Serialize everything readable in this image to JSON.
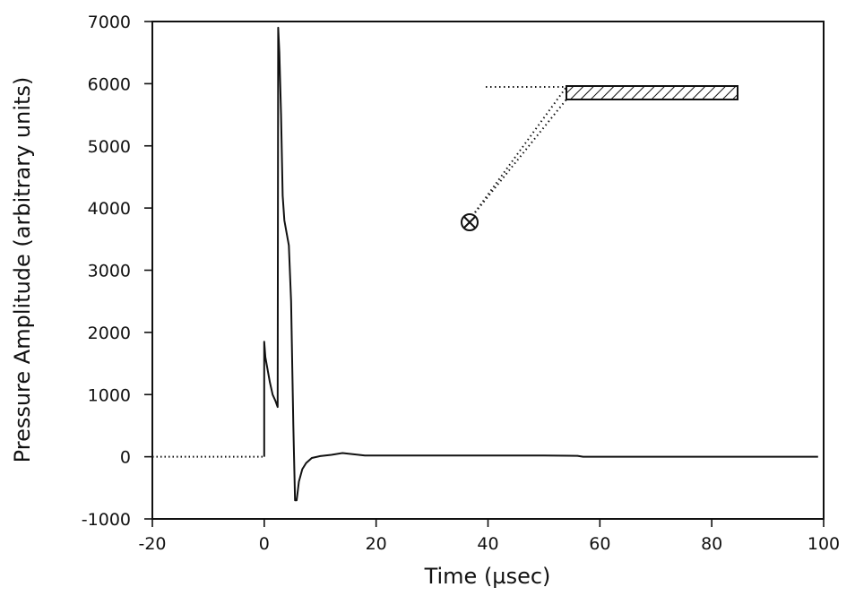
{
  "chart_data": {
    "type": "line",
    "title": "",
    "xlabel": "Time (µsec)",
    "ylabel": "Pressure Amplitude (arbitrary units)",
    "xlim": [
      -20,
      100
    ],
    "ylim": [
      -1000,
      7000
    ],
    "xticks": [
      -20,
      0,
      20,
      40,
      60,
      80,
      100
    ],
    "yticks": [
      -1000,
      0,
      1000,
      2000,
      3000,
      4000,
      5000,
      6000,
      7000
    ],
    "xtick_labels": [
      "-20",
      "0",
      "20",
      "40",
      "60",
      "80",
      "100"
    ],
    "ytick_labels": [
      "-1000",
      "0",
      "1000",
      "2000",
      "3000",
      "4000",
      "5000",
      "6000",
      "7000"
    ],
    "grid": false,
    "legend": "none",
    "series": [
      {
        "style": "dotted",
        "x": [
          -20,
          0
        ],
        "y": [
          0,
          0
        ]
      },
      {
        "style": "solid",
        "x": [
          0,
          0,
          0.2,
          0.6,
          1.0,
          1.5,
          2.0,
          2.4,
          2.5,
          2.7,
          3.0,
          3.3,
          3.6,
          4.0,
          4.4,
          4.8,
          5.2,
          5.5,
          5.8,
          6.2,
          6.8,
          7.5,
          8.5,
          10,
          12,
          14,
          16,
          18,
          20,
          30,
          40,
          50,
          56,
          57,
          60,
          70,
          80,
          90,
          99
        ],
        "y": [
          0,
          1850,
          1600,
          1400,
          1200,
          1000,
          900,
          800,
          6900,
          6500,
          5500,
          4200,
          3800,
          3600,
          3400,
          2500,
          500,
          -700,
          -700,
          -400,
          -200,
          -100,
          -20,
          10,
          30,
          60,
          40,
          20,
          20,
          20,
          20,
          20,
          15,
          0,
          0,
          0,
          0,
          0,
          0
        ]
      }
    ],
    "annotations": [
      {
        "kind": "inset-geometry-diagram",
        "description_symbol": "circle-with-x-icon",
        "pattern": "hatched-plate"
      }
    ]
  }
}
